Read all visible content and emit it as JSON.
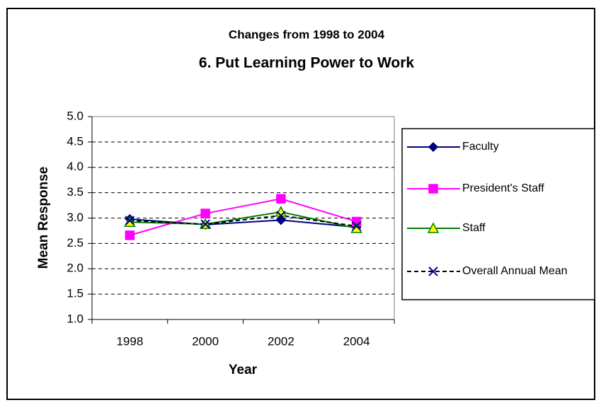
{
  "chart_data": {
    "type": "line",
    "title": "Changes from 1998 to 2004",
    "subtitle": "6.  Put Learning Power to Work",
    "x_label": "Year",
    "y_label": "Mean Response",
    "categories": [
      "1998",
      "2000",
      "2002",
      "2004"
    ],
    "series": [
      {
        "name": "Faculty",
        "color": "#000080",
        "marker": "diamond",
        "marker_fill": "#000080",
        "line_style": "solid",
        "values": [
          2.98,
          2.87,
          2.96,
          2.82
        ]
      },
      {
        "name": "President's Staff",
        "color": "#ff00ff",
        "marker": "square",
        "marker_fill": "#ff00ff",
        "line_style": "solid",
        "values": [
          2.66,
          3.09,
          3.38,
          2.93
        ]
      },
      {
        "name": "Staff",
        "color": "#008000",
        "marker": "triangle",
        "marker_fill": "#ffff00",
        "line_style": "solid",
        "values": [
          2.92,
          2.88,
          3.12,
          2.8
        ]
      },
      {
        "name": "Overall Annual Mean",
        "color": "#000080",
        "marker": "x",
        "marker_fill": "#000080",
        "line_style": "dashed",
        "line_color": "#000000",
        "values": [
          2.95,
          2.88,
          3.05,
          2.84
        ]
      }
    ],
    "ylim": [
      1,
      5
    ],
    "yticks": [
      {
        "value": 1,
        "label": "1.0"
      },
      {
        "value": 1.5,
        "label": "1.5"
      },
      {
        "value": 2,
        "label": "2.0"
      },
      {
        "value": 2.5,
        "label": "2.5"
      },
      {
        "value": 3,
        "label": "3.0"
      },
      {
        "value": 3.5,
        "label": "3.5"
      },
      {
        "value": 4,
        "label": "4.0"
      },
      {
        "value": 4.5,
        "label": "4.5"
      },
      {
        "value": 5,
        "label": "5.0"
      }
    ],
    "grid": true,
    "legend": "right"
  }
}
